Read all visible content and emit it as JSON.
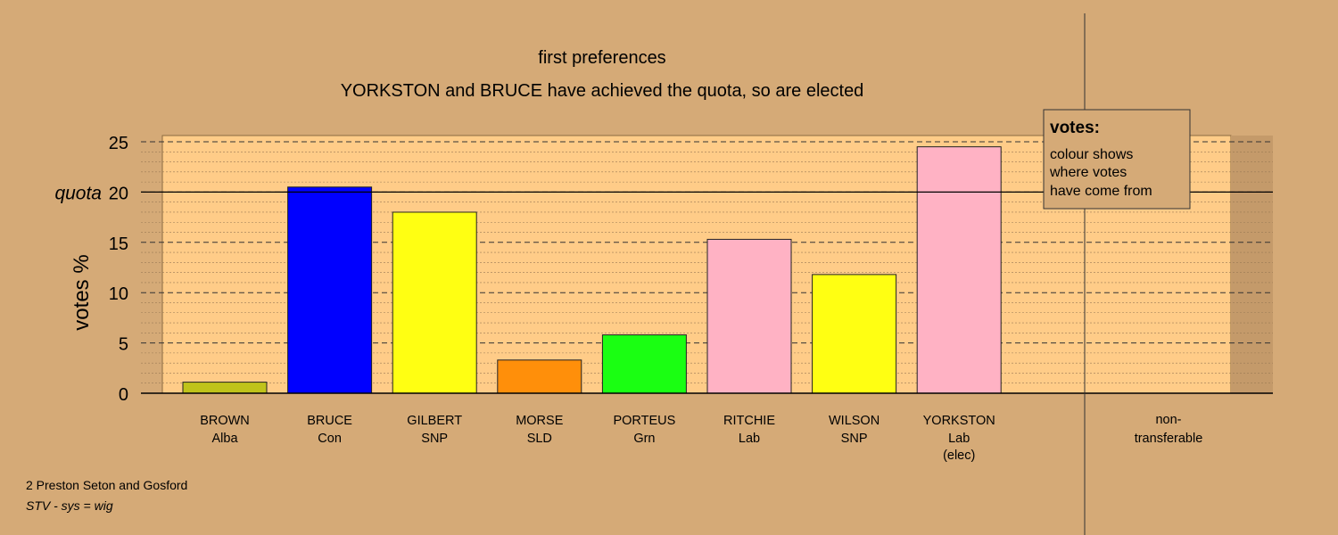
{
  "chart_data": {
    "type": "bar",
    "title": "first preferences",
    "subtitle": "YORKSTON and BRUCE have achieved the quota, so are elected",
    "ylabel": "votes %",
    "ylim": [
      0,
      25
    ],
    "y_ticks": [
      0,
      5,
      10,
      15,
      20,
      25
    ],
    "quota": 20,
    "quota_label": "quota",
    "candidates": [
      {
        "name": "BROWN",
        "party": "Alba",
        "note": "",
        "value": 1.1,
        "color": "#bfc31a"
      },
      {
        "name": "BRUCE",
        "party": "Con",
        "note": "",
        "value": 20.5,
        "color": "#0000ff"
      },
      {
        "name": "GILBERT",
        "party": "SNP",
        "note": "",
        "value": 18.0,
        "color": "#ffff12"
      },
      {
        "name": "MORSE",
        "party": "SLD",
        "note": "",
        "value": 3.3,
        "color": "#ff8f0a"
      },
      {
        "name": "PORTEUS",
        "party": "Grn",
        "note": "",
        "value": 5.8,
        "color": "#1aff12"
      },
      {
        "name": "RITCHIE",
        "party": "Lab",
        "note": "",
        "value": 15.3,
        "color": "#ffb2c4"
      },
      {
        "name": "WILSON",
        "party": "SNP",
        "note": "",
        "value": 11.8,
        "color": "#ffff12"
      },
      {
        "name": "YORKSTON",
        "party": "Lab",
        "note": "(elec)",
        "value": 24.5,
        "color": "#ffb2c4"
      }
    ],
    "nontransferable": {
      "line1": "non-",
      "line2": "transferable",
      "value": 0
    },
    "legend": {
      "title": "votes:",
      "lines": [
        "colour shows",
        "where votes",
        "have come from"
      ],
      "placement": "top-right"
    }
  },
  "footer": {
    "ward": "2 Preston Seton and Gosford",
    "system": "STV - sys = wig"
  },
  "colors": {
    "background": "#d5aa77",
    "panel": "#ffcc88",
    "outer_panel": "#c49a6a"
  }
}
